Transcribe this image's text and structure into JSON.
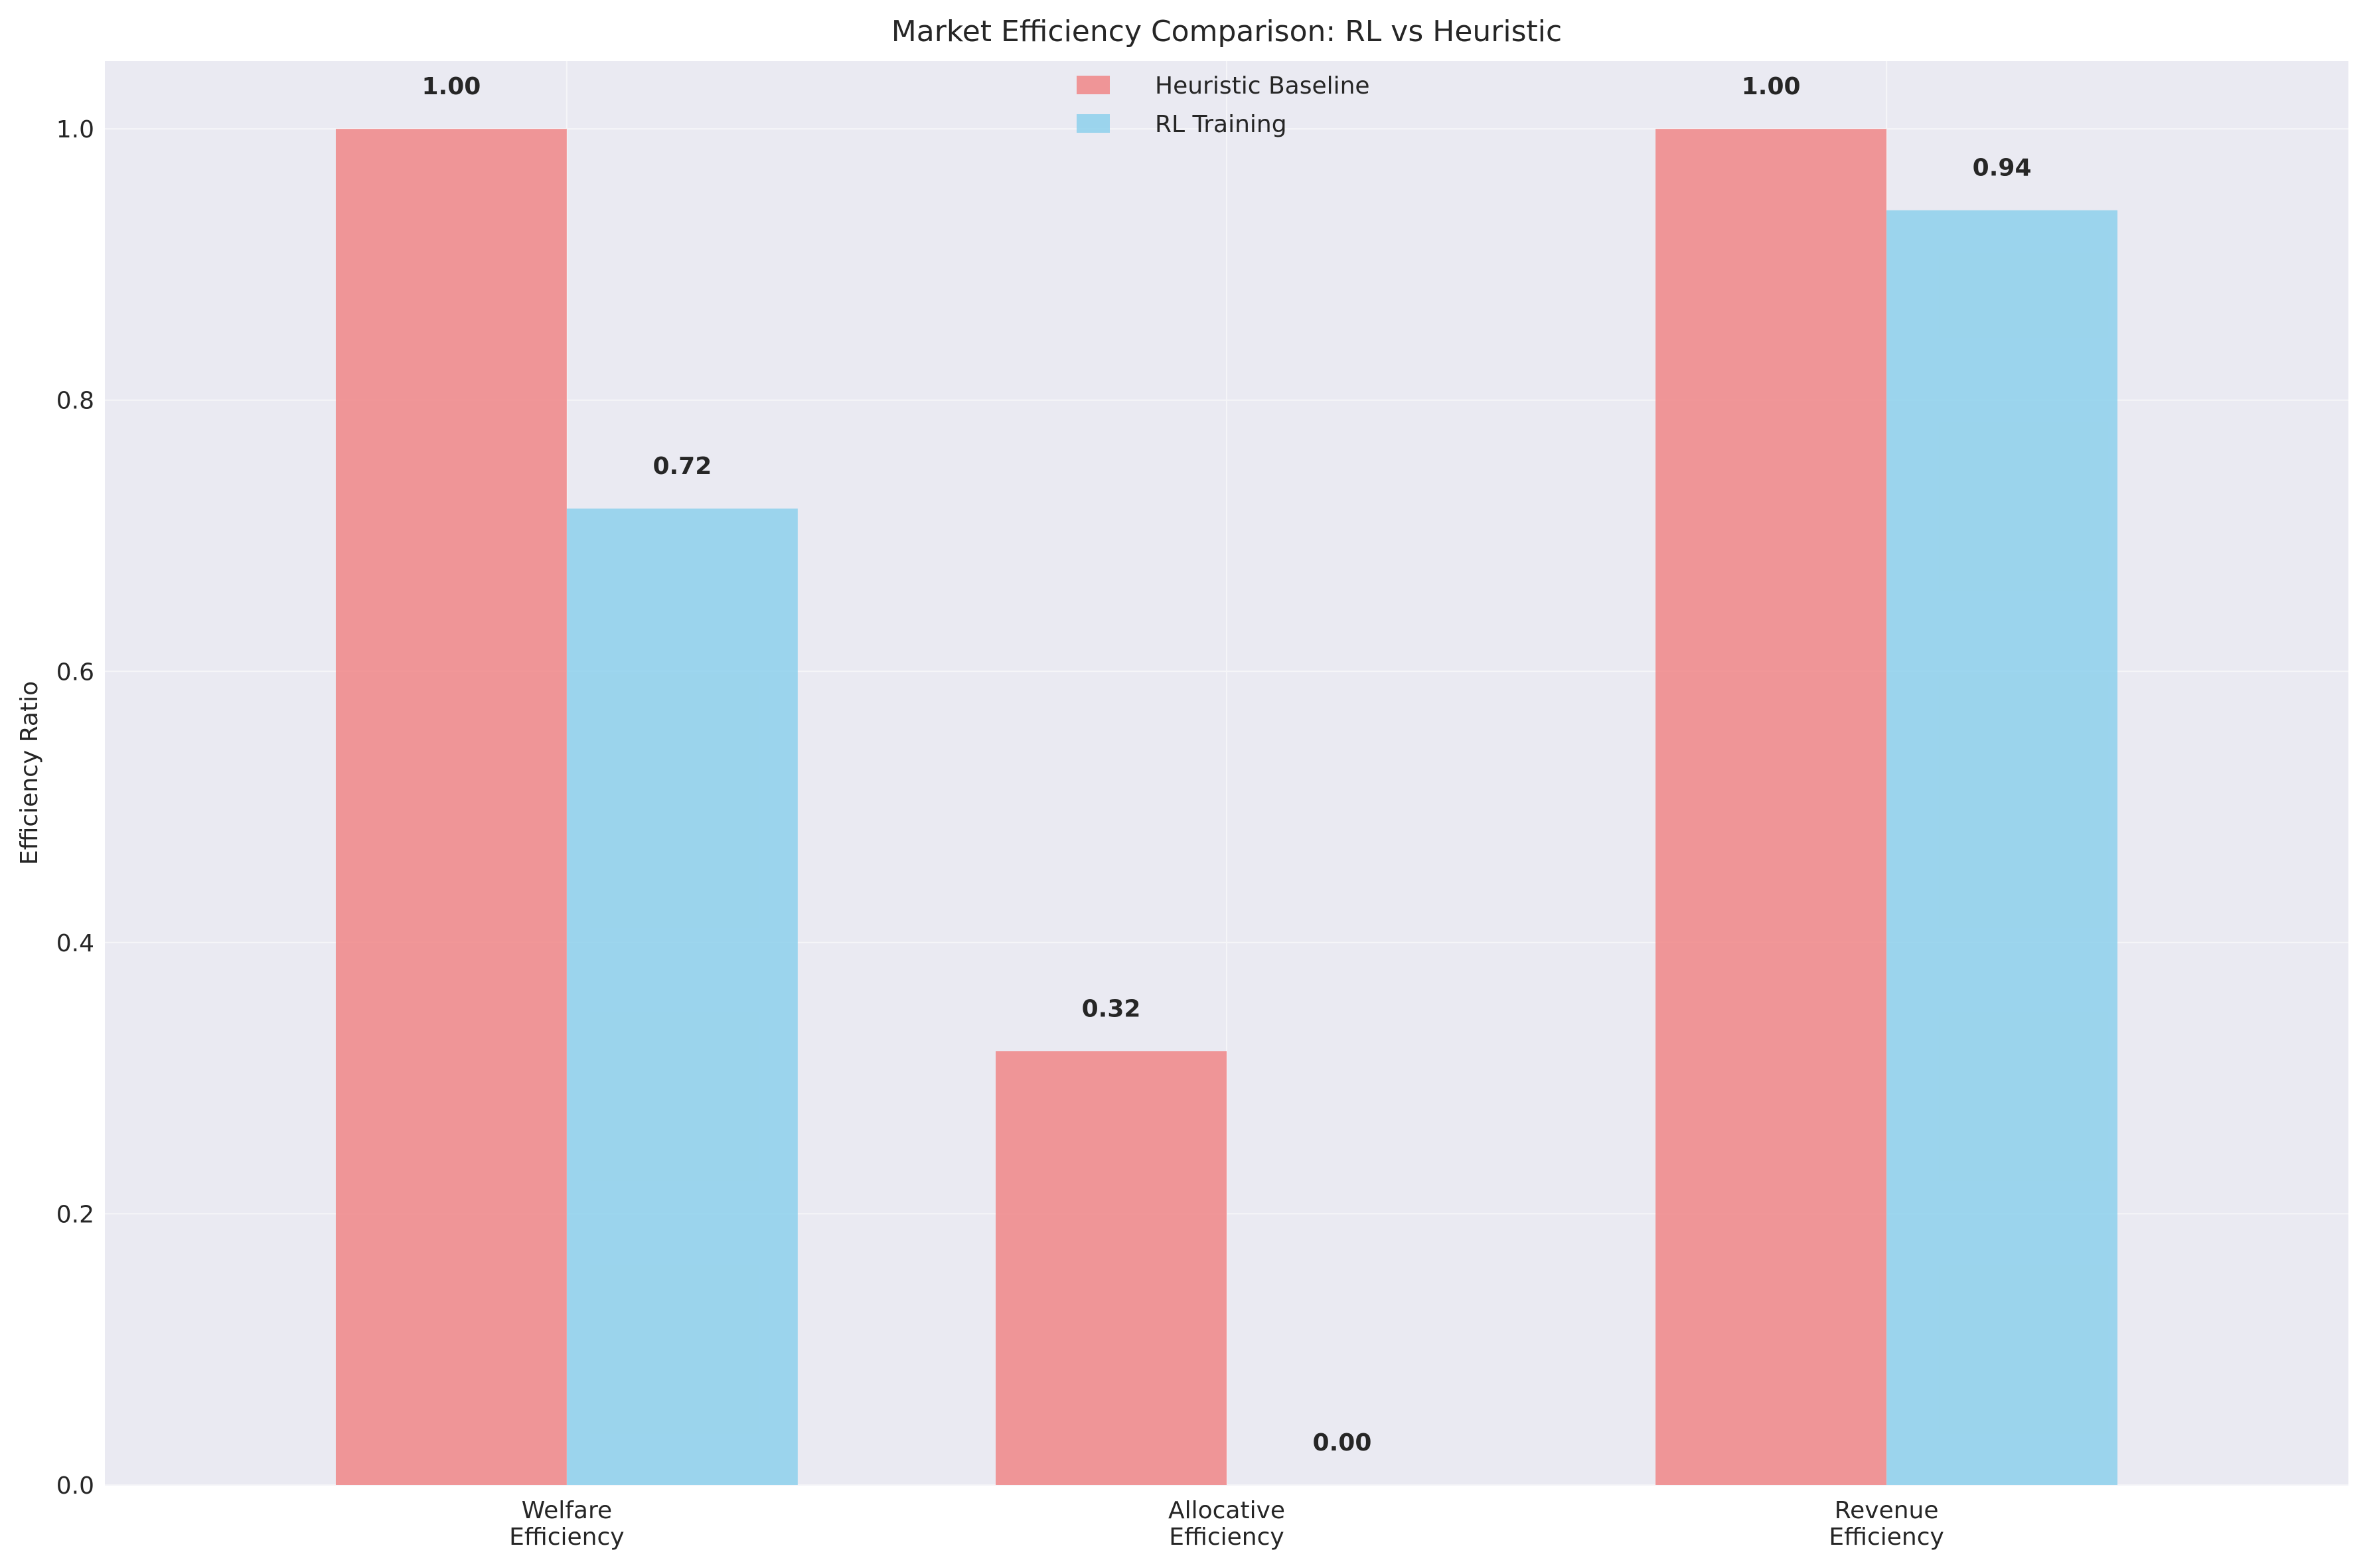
{
  "chart_data": {
    "type": "bar",
    "title": "Market Efficiency Comparison: RL vs Heuristic",
    "xlabel": "",
    "ylabel": "Efficiency Ratio",
    "categories": [
      [
        "Welfare",
        "Efficiency"
      ],
      [
        "Allocative",
        "Efficiency"
      ],
      [
        "Revenue",
        "Efficiency"
      ]
    ],
    "series": [
      {
        "name": "Heuristic Baseline",
        "color": "#f08080",
        "values": [
          1.0,
          0.32,
          1.0
        ],
        "labels": [
          "1.00",
          "0.32",
          "1.00"
        ]
      },
      {
        "name": "RL Training",
        "color": "#87ceeb",
        "values": [
          0.72,
          0.0,
          0.94
        ],
        "labels": [
          "0.72",
          "0.00",
          "0.94"
        ]
      }
    ],
    "ylim": [
      0,
      1.05
    ],
    "yticks": [
      0.0,
      0.2,
      0.4,
      0.6,
      0.8,
      1.0
    ],
    "ytick_labels": [
      "0.0",
      "0.2",
      "0.4",
      "0.6",
      "0.8",
      "1.0"
    ],
    "grid": true,
    "legend_position": "upper-center",
    "bar_opacity": 0.8,
    "background_color": "#eaeaf2"
  }
}
